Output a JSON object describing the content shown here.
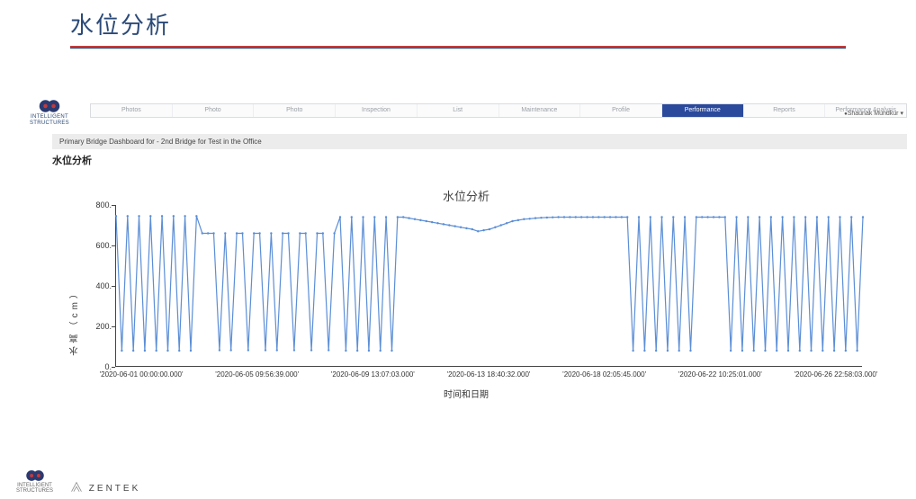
{
  "page": {
    "title": "水位分析",
    "rule_top_color": "#c33a3a",
    "rule_bottom_color": "#2b4a78"
  },
  "logo": {
    "line1": "INTELLIGENT",
    "line2": "STRUCTURES",
    "fill": "#2b3a70"
  },
  "user_dropdown": "Shaunak Mundkur",
  "nav": {
    "items": [
      {
        "label": "Photos"
      },
      {
        "label": "Photo"
      },
      {
        "label": "Photo"
      },
      {
        "label": "Inspection"
      },
      {
        "label": "List"
      },
      {
        "label": "Maintenance"
      },
      {
        "label": "Profile"
      },
      {
        "label": "Performance"
      },
      {
        "label": "Reports"
      },
      {
        "label": "Performance Analysis"
      }
    ],
    "active_index": 7,
    "active_bg": "#2b4a9c"
  },
  "breadcrumb": "Primary Bridge Dashboard for - 2nd Bridge for Test in the Office",
  "subheading": "水位分析",
  "chart": {
    "type": "line",
    "title": "水位分析",
    "ylabel": "水高（cm）",
    "xlabel": "时间和日期",
    "ylim": [
      0,
      800
    ],
    "ytick_step": 200,
    "yticks": [
      0,
      200,
      400,
      600,
      800
    ],
    "line_color": "#5b8ed6",
    "line_width": 1.2,
    "marker_color": "#5b8ed6",
    "marker_radius": 1.2,
    "axis_color": "#444444",
    "background": "#ffffff",
    "x_tick_labels": [
      "'2020-06-01 00:00:00.000'",
      "'2020-06-05 09:56:39.000'",
      "'2020-06-09 13:07:03.000'",
      "'2020-06-13 18:40:32.000'",
      "'2020-06-18 02:05:45.000'",
      "'2020-06-22 10:25:01.000'",
      "'2020-06-26 22:58:03.000'"
    ],
    "x_tick_positions": [
      0.035,
      0.19,
      0.345,
      0.5,
      0.655,
      0.81,
      0.965
    ],
    "series": [
      745,
      80,
      745,
      80,
      745,
      80,
      745,
      80,
      745,
      80,
      745,
      80,
      745,
      80,
      745,
      660,
      660,
      660,
      82,
      660,
      82,
      660,
      660,
      82,
      660,
      660,
      82,
      660,
      82,
      660,
      660,
      82,
      660,
      660,
      82,
      660,
      660,
      82,
      660,
      740,
      80,
      740,
      80,
      740,
      80,
      740,
      80,
      740,
      80,
      740,
      740,
      735,
      730,
      725,
      720,
      715,
      710,
      705,
      700,
      695,
      690,
      685,
      680,
      670,
      675,
      680,
      690,
      700,
      710,
      720,
      725,
      730,
      732,
      735,
      737,
      738,
      739,
      740,
      740,
      740,
      740,
      740,
      740,
      740,
      740,
      740,
      740,
      740,
      740,
      740,
      80,
      740,
      80,
      740,
      80,
      740,
      80,
      740,
      80,
      740,
      80,
      740,
      740,
      740,
      740,
      740,
      740,
      80,
      740,
      80,
      740,
      80,
      740,
      80,
      740,
      80,
      740,
      80,
      740,
      80,
      740,
      80,
      740,
      80,
      740,
      80,
      740,
      80,
      740,
      80,
      740
    ]
  },
  "footer": {
    "logo1_line1": "INTELLIGENT",
    "logo1_line2": "STRUCTURES",
    "logo2": "ZENTEK"
  }
}
